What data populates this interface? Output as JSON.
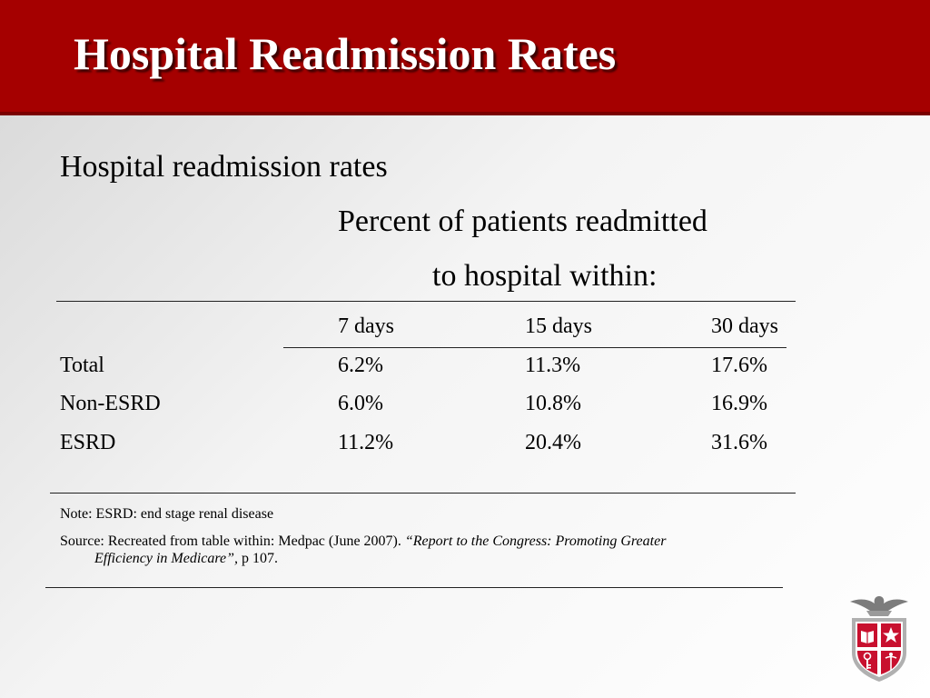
{
  "title": "Hospital Readmission Rates",
  "subheading": "Hospital readmission rates",
  "table": {
    "group_header_line1": "Percent of patients readmitted",
    "group_header_line2": "to hospital within:",
    "columns": [
      "7 days",
      "15 days",
      "30 days"
    ],
    "rows": [
      {
        "label": "Total",
        "values": [
          "6.2%",
          "11.3%",
          "17.6%"
        ]
      },
      {
        "label": "Non-ESRD",
        "values": [
          "6.0%",
          "10.8%",
          "16.9%"
        ]
      },
      {
        "label": "ESRD",
        "values": [
          "11.2%",
          "20.4%",
          "31.6%"
        ]
      }
    ]
  },
  "note": "Note: ESRD: end stage renal disease",
  "source": {
    "prefix": "Source: Recreated from table within: Medpac (June 2007). ",
    "italic_line1": "“Report to the Congress: Promoting Greater",
    "italic_line2": "Efficiency in Medicare”,",
    "suffix": " p 107."
  },
  "logo": {
    "icon": "university-seal-icon"
  },
  "colors": {
    "header": "#a50000",
    "header_rule": "#7a0000"
  }
}
